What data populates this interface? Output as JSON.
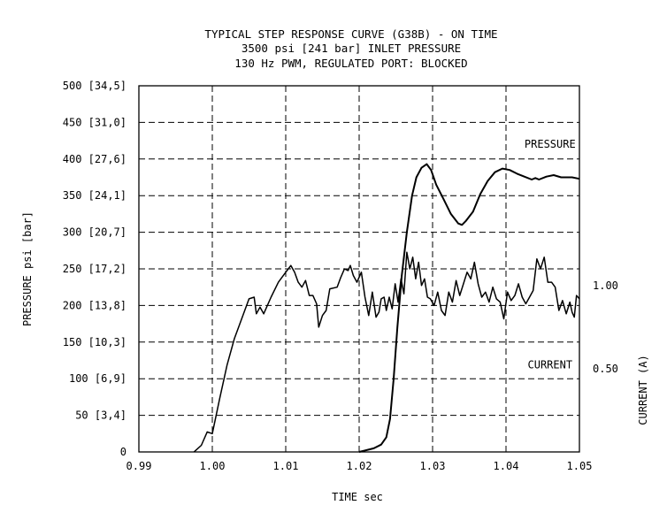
{
  "chart_data": {
    "type": "line",
    "title": "TYPICAL STEP RESPONSE CURVE (G38B) - ON TIME",
    "subtitle_lines": [
      "3500 psi [241 bar] INLET PRESSURE",
      "130 Hz PWM, REGULATED PORT: BLOCKED"
    ],
    "xlabel": "TIME sec",
    "ylabel": "PRESSURE psi [bar]",
    "y2label": "CURRENT (A)",
    "xlim": [
      0.99,
      1.05
    ],
    "ylim": [
      0,
      500
    ],
    "y2lim": [
      0,
      2.2
    ],
    "grid": true,
    "x_ticks": [
      {
        "value": 0.99,
        "label": "0.99"
      },
      {
        "value": 1.0,
        "label": "1.00"
      },
      {
        "value": 1.01,
        "label": "1.01"
      },
      {
        "value": 1.02,
        "label": "1.02"
      },
      {
        "value": 1.03,
        "label": "1.03"
      },
      {
        "value": 1.04,
        "label": "1.04"
      },
      {
        "value": 1.05,
        "label": "1.05"
      }
    ],
    "y_ticks": [
      {
        "value": 0,
        "label": "0"
      },
      {
        "value": 50,
        "label": "50 [3,4]"
      },
      {
        "value": 100,
        "label": "100 [6,9]"
      },
      {
        "value": 150,
        "label": "150 [10,3]"
      },
      {
        "value": 200,
        "label": "200 [13,8]"
      },
      {
        "value": 250,
        "label": "250 [17,2]"
      },
      {
        "value": 300,
        "label": "300 [20,7]"
      },
      {
        "value": 350,
        "label": "350 [24,1]"
      },
      {
        "value": 400,
        "label": "400 [27,6]"
      },
      {
        "value": 450,
        "label": "450 [31,0]"
      },
      {
        "value": 500,
        "label": "500 [34,5]"
      }
    ],
    "y2_ticks": [
      {
        "value": 1.0,
        "label": "1.00"
      },
      {
        "value": 0.5,
        "label": "0.50"
      }
    ],
    "series": [
      {
        "name": "PRESSURE",
        "axis": "left",
        "points": [
          [
            1.02,
            0
          ],
          [
            1.022,
            5
          ],
          [
            1.023,
            10
          ],
          [
            1.0237,
            20
          ],
          [
            1.0242,
            45
          ],
          [
            1.0247,
            100
          ],
          [
            1.0252,
            170
          ],
          [
            1.0258,
            240
          ],
          [
            1.0265,
            300
          ],
          [
            1.0272,
            350
          ],
          [
            1.0278,
            375
          ],
          [
            1.0285,
            388
          ],
          [
            1.0292,
            393
          ],
          [
            1.0298,
            385
          ],
          [
            1.0305,
            365
          ],
          [
            1.0315,
            345
          ],
          [
            1.0325,
            325
          ],
          [
            1.0335,
            312
          ],
          [
            1.034,
            310
          ],
          [
            1.0345,
            315
          ],
          [
            1.0355,
            328
          ],
          [
            1.0365,
            352
          ],
          [
            1.0375,
            370
          ],
          [
            1.0385,
            382
          ],
          [
            1.0395,
            387
          ],
          [
            1.0405,
            385
          ],
          [
            1.0415,
            380
          ],
          [
            1.0425,
            376
          ],
          [
            1.0435,
            372
          ],
          [
            1.044,
            374
          ],
          [
            1.0445,
            372
          ],
          [
            1.0455,
            376
          ],
          [
            1.0465,
            378
          ],
          [
            1.0475,
            375
          ],
          [
            1.049,
            375
          ],
          [
            1.05,
            373
          ]
        ]
      },
      {
        "name": "CURRENT",
        "axis": "right",
        "points": [
          [
            0.9975,
            0
          ],
          [
            0.9985,
            0.04
          ],
          [
            0.9993,
            0.12
          ],
          [
            1.0,
            0.11
          ],
          [
            1.001,
            0.32
          ],
          [
            1.002,
            0.52
          ],
          [
            1.003,
            0.68
          ],
          [
            1.004,
            0.8
          ],
          [
            1.005,
            0.92
          ],
          [
            1.0057,
            0.93
          ],
          [
            1.006,
            0.83
          ],
          [
            1.0065,
            0.87
          ],
          [
            1.007,
            0.83
          ],
          [
            1.008,
            0.93
          ],
          [
            1.009,
            1.02
          ],
          [
            1.01,
            1.08
          ],
          [
            1.0107,
            1.12
          ],
          [
            1.0112,
            1.08
          ],
          [
            1.0117,
            1.02
          ],
          [
            1.0122,
            0.99
          ],
          [
            1.0127,
            1.03
          ],
          [
            1.0132,
            0.94
          ],
          [
            1.0137,
            0.94
          ],
          [
            1.0142,
            0.89
          ],
          [
            1.0145,
            0.75
          ],
          [
            1.015,
            0.82
          ],
          [
            1.0155,
            0.85
          ],
          [
            1.016,
            0.98
          ],
          [
            1.017,
            0.99
          ],
          [
            1.0175,
            1.05
          ],
          [
            1.018,
            1.1
          ],
          [
            1.0185,
            1.09
          ],
          [
            1.0188,
            1.12
          ],
          [
            1.0192,
            1.06
          ],
          [
            1.0197,
            1.02
          ],
          [
            1.0203,
            1.08
          ],
          [
            1.0208,
            0.93
          ],
          [
            1.0213,
            0.82
          ],
          [
            1.0218,
            0.96
          ],
          [
            1.0223,
            0.81
          ],
          [
            1.0227,
            0.84
          ],
          [
            1.023,
            0.92
          ],
          [
            1.0234,
            0.93
          ],
          [
            1.0237,
            0.85
          ],
          [
            1.0241,
            0.93
          ],
          [
            1.0245,
            0.86
          ],
          [
            1.0249,
            1.01
          ],
          [
            1.0253,
            0.9
          ],
          [
            1.0257,
            1.04
          ],
          [
            1.0261,
            0.95
          ],
          [
            1.0265,
            1.2
          ],
          [
            1.0269,
            1.1
          ],
          [
            1.0273,
            1.17
          ],
          [
            1.0277,
            1.04
          ],
          [
            1.0281,
            1.14
          ],
          [
            1.0285,
            1.0
          ],
          [
            1.0289,
            1.04
          ],
          [
            1.0293,
            0.93
          ],
          [
            1.0297,
            0.92
          ],
          [
            1.0302,
            0.88
          ],
          [
            1.0307,
            0.96
          ],
          [
            1.0312,
            0.85
          ],
          [
            1.0317,
            0.82
          ],
          [
            1.0322,
            0.96
          ],
          [
            1.0327,
            0.9
          ],
          [
            1.0332,
            1.03
          ],
          [
            1.0337,
            0.94
          ],
          [
            1.0342,
            1.01
          ],
          [
            1.0347,
            1.08
          ],
          [
            1.0352,
            1.04
          ],
          [
            1.0357,
            1.14
          ],
          [
            1.0362,
            1.01
          ],
          [
            1.0367,
            0.93
          ],
          [
            1.0372,
            0.96
          ],
          [
            1.0377,
            0.9
          ],
          [
            1.0382,
            0.99
          ],
          [
            1.0387,
            0.92
          ],
          [
            1.0392,
            0.9
          ],
          [
            1.0397,
            0.8
          ],
          [
            1.0402,
            0.96
          ],
          [
            1.0407,
            0.91
          ],
          [
            1.0412,
            0.94
          ],
          [
            1.0417,
            1.01
          ],
          [
            1.0422,
            0.93
          ],
          [
            1.0427,
            0.89
          ],
          [
            1.0432,
            0.93
          ],
          [
            1.0437,
            0.97
          ],
          [
            1.0442,
            1.16
          ],
          [
            1.0447,
            1.1
          ],
          [
            1.0452,
            1.17
          ],
          [
            1.0457,
            1.02
          ],
          [
            1.0462,
            1.02
          ],
          [
            1.0467,
            0.99
          ],
          [
            1.0472,
            0.85
          ],
          [
            1.0477,
            0.91
          ],
          [
            1.0482,
            0.83
          ],
          [
            1.0487,
            0.9
          ],
          [
            1.049,
            0.84
          ],
          [
            1.0493,
            0.81
          ],
          [
            1.0496,
            0.94
          ],
          [
            1.05,
            0.92
          ]
        ]
      }
    ],
    "annotations": [
      {
        "text": "PRESSURE",
        "x": 1.046,
        "y": 420
      },
      {
        "text": "CURRENT",
        "x": 1.046,
        "y": 119
      }
    ]
  }
}
